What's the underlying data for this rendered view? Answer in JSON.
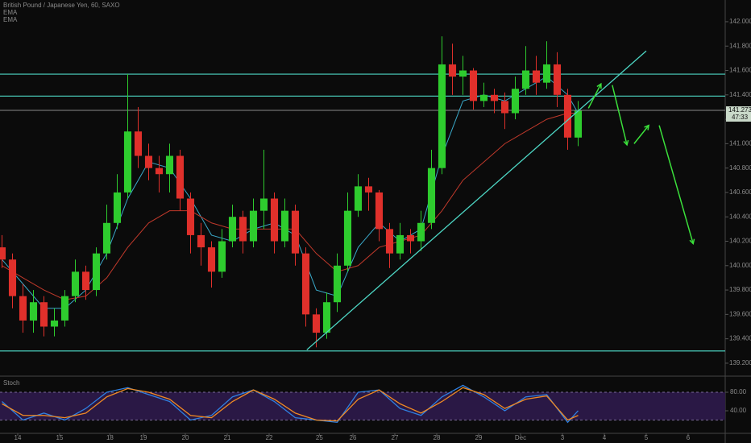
{
  "chart_data": [
    {
      "type": "candlestick",
      "title": "British Pound / Japanese Yen, 60, SAXO",
      "x": [
        -0.375,
        -0.125,
        0.125,
        0.375,
        0.625,
        0.875,
        1.125,
        1.375,
        1.625,
        1.875,
        2.125,
        2.375,
        2.625,
        2.875,
        3.125,
        3.375,
        3.625,
        3.875,
        4.125,
        4.375,
        4.625,
        4.875,
        5.125,
        5.375,
        5.625,
        5.875,
        6.125,
        6.375,
        6.625,
        6.875,
        7.125,
        7.375,
        7.625,
        7.875,
        8.125,
        8.375,
        8.625,
        8.875,
        9.125,
        9.375,
        9.625,
        9.875,
        10.125,
        10.375,
        10.625,
        10.875,
        11.125,
        11.375,
        11.625,
        11.875,
        12.125,
        12.375,
        12.625,
        12.875,
        13.125,
        13.375
      ],
      "open": [
        140.15,
        140.05,
        139.75,
        139.55,
        139.7,
        139.5,
        139.55,
        139.75,
        139.95,
        139.8,
        140.1,
        140.35,
        140.6,
        141.1,
        140.9,
        140.8,
        140.75,
        140.9,
        140.55,
        140.25,
        140.15,
        139.95,
        140.2,
        140.4,
        140.2,
        140.45,
        140.55,
        140.2,
        140.45,
        140.1,
        139.6,
        139.45,
        139.7,
        140.0,
        140.45,
        140.65,
        140.6,
        140.3,
        140.1,
        140.25,
        140.2,
        140.35,
        140.8,
        141.65,
        141.55,
        141.6,
        141.35,
        141.4,
        141.35,
        141.25,
        141.45,
        141.6,
        141.5,
        141.65,
        141.4,
        141.05
      ],
      "high": [
        140.25,
        140.1,
        139.85,
        139.8,
        139.75,
        139.65,
        139.8,
        140.05,
        140.0,
        140.15,
        140.5,
        140.75,
        141.57,
        141.3,
        141.0,
        140.9,
        141.0,
        140.95,
        140.6,
        140.35,
        140.2,
        140.3,
        140.5,
        140.45,
        140.55,
        140.95,
        140.6,
        140.55,
        140.5,
        140.15,
        139.65,
        139.78,
        140.1,
        140.6,
        140.75,
        140.72,
        140.62,
        140.35,
        140.35,
        140.3,
        140.45,
        140.95,
        141.88,
        141.82,
        141.72,
        141.62,
        141.5,
        141.45,
        141.42,
        141.55,
        141.8,
        141.72,
        141.84,
        141.75,
        141.45,
        141.35
      ],
      "low": [
        139.98,
        139.65,
        139.45,
        139.45,
        139.42,
        139.42,
        139.5,
        139.7,
        139.72,
        139.75,
        140.05,
        140.3,
        140.55,
        140.8,
        140.7,
        140.6,
        140.6,
        140.45,
        140.1,
        140.0,
        139.82,
        139.9,
        140.15,
        140.1,
        140.15,
        140.3,
        140.1,
        140.15,
        140.0,
        139.5,
        139.33,
        139.4,
        139.62,
        139.95,
        140.4,
        140.45,
        140.2,
        139.98,
        140.05,
        140.1,
        140.12,
        140.3,
        140.75,
        141.4,
        141.4,
        141.28,
        141.3,
        141.25,
        141.12,
        141.2,
        141.4,
        141.4,
        141.45,
        141.3,
        140.95,
        140.98
      ],
      "close": [
        140.05,
        139.75,
        139.55,
        139.7,
        139.5,
        139.55,
        139.75,
        139.95,
        139.8,
        140.1,
        140.35,
        140.6,
        141.1,
        140.9,
        140.8,
        140.75,
        140.9,
        140.55,
        140.25,
        140.15,
        139.95,
        140.2,
        140.4,
        140.2,
        140.45,
        140.55,
        140.2,
        140.45,
        140.1,
        139.6,
        139.45,
        139.7,
        140.0,
        140.45,
        140.65,
        140.6,
        140.3,
        140.1,
        140.25,
        140.2,
        140.35,
        140.8,
        141.65,
        141.55,
        141.6,
        141.35,
        141.4,
        141.35,
        141.25,
        141.45,
        141.6,
        141.5,
        141.65,
        141.4,
        141.05,
        141.27
      ],
      "up_color": "#2ecc2e",
      "down_color": "#e0302b",
      "overlays": [
        {
          "name": "EMA",
          "color": "#3aa8c8",
          "x": [
            -0.375,
            0.125,
            0.625,
            1.125,
            1.625,
            2.125,
            2.625,
            3.125,
            3.625,
            4.125,
            4.625,
            5.125,
            5.625,
            6.125,
            6.625,
            7.125,
            7.625,
            8.125,
            8.625,
            9.125,
            9.625,
            10.125,
            10.625,
            11.125,
            11.625,
            12.125,
            12.625,
            13.125,
            13.375
          ],
          "values": [
            140.05,
            139.85,
            139.65,
            139.65,
            139.8,
            140.1,
            140.55,
            140.85,
            140.8,
            140.55,
            140.25,
            140.2,
            140.3,
            140.35,
            140.25,
            139.8,
            139.75,
            140.15,
            140.35,
            140.2,
            140.3,
            140.9,
            141.35,
            141.4,
            141.35,
            141.45,
            141.55,
            141.4,
            141.25
          ]
        },
        {
          "name": "EMA",
          "color": "#c0392b",
          "x": [
            -0.375,
            0.125,
            0.625,
            1.125,
            1.625,
            2.125,
            2.625,
            3.125,
            3.625,
            4.125,
            4.625,
            5.125,
            5.625,
            6.125,
            6.625,
            7.125,
            7.625,
            8.125,
            8.625,
            9.125,
            9.625,
            10.125,
            10.625,
            11.125,
            11.625,
            12.125,
            12.625,
            13.125,
            13.375
          ],
          "values": [
            140.0,
            139.9,
            139.8,
            139.72,
            139.75,
            139.9,
            140.15,
            140.35,
            140.45,
            140.45,
            140.35,
            140.3,
            140.3,
            140.3,
            140.3,
            140.1,
            139.95,
            140.0,
            140.15,
            140.2,
            140.25,
            140.45,
            140.7,
            140.85,
            141.0,
            141.1,
            141.2,
            141.25,
            141.25
          ]
        }
      ],
      "levels": [
        141.57,
        141.39,
        139.3
      ],
      "level_color": "#4dd6c4",
      "last_price": 141.273,
      "countdown": "47:33",
      "last_price_color": "#8a8a8a",
      "trendline": {
        "x": [
          6.9,
          15.0
        ],
        "y": [
          139.31,
          141.76
        ],
        "color": "#4dd6c4"
      },
      "forecast": {
        "color": "#3be03b",
        "segments": [
          {
            "x": [
              13.62,
              13.92
            ],
            "y": [
              141.29,
              141.49
            ]
          },
          {
            "x": [
              14.19,
              14.54
            ],
            "y": [
              141.48,
              140.99
            ]
          },
          {
            "x": [
              14.71,
              15.06
            ],
            "y": [
              141.0,
              141.15
            ]
          },
          {
            "x": [
              15.31,
              16.12
            ],
            "y": [
              141.15,
              140.18
            ]
          }
        ]
      },
      "xlim": [
        -0.423,
        16.885
      ],
      "ylim": [
        139.107,
        142.178
      ],
      "xticks": [
        {
          "value": 0,
          "label": "14"
        },
        {
          "value": 1,
          "label": "15"
        },
        {
          "value": 2.2,
          "label": "18"
        },
        {
          "value": 3,
          "label": "19"
        },
        {
          "value": 4,
          "label": "20"
        },
        {
          "value": 5,
          "label": "21"
        },
        {
          "value": 6,
          "label": "22"
        },
        {
          "value": 7.2,
          "label": "25"
        },
        {
          "value": 8,
          "label": "26"
        },
        {
          "value": 9,
          "label": "27"
        },
        {
          "value": 10,
          "label": "28"
        },
        {
          "value": 11,
          "label": "29"
        },
        {
          "value": 12,
          "label": "Dec"
        },
        {
          "value": 13,
          "label": "3"
        },
        {
          "value": 14,
          "label": "4"
        },
        {
          "value": 15,
          "label": "5"
        },
        {
          "value": 16,
          "label": "6"
        }
      ],
      "yticks": [
        {
          "value": 139.2,
          "label": "139.200"
        },
        {
          "value": 139.4,
          "label": "139.400"
        },
        {
          "value": 139.6,
          "label": "139.600"
        },
        {
          "value": 139.8,
          "label": "139.800"
        },
        {
          "value": 140.0,
          "label": "140.000"
        },
        {
          "value": 140.2,
          "label": "140.200"
        },
        {
          "value": 140.4,
          "label": "140.400"
        },
        {
          "value": 140.6,
          "label": "140.600"
        },
        {
          "value": 140.8,
          "label": "140.800"
        },
        {
          "value": 141.0,
          "label": "141.000"
        },
        {
          "value": 141.2,
          "label": "141.200"
        },
        {
          "value": 141.4,
          "label": "141.400"
        },
        {
          "value": 141.6,
          "label": "141.600"
        },
        {
          "value": 141.8,
          "label": "141.800"
        },
        {
          "value": 142.0,
          "label": "142.000"
        }
      ]
    },
    {
      "type": "line",
      "title": "Stoch",
      "x": [
        -0.375,
        0.125,
        0.625,
        1.125,
        1.625,
        2.125,
        2.625,
        3.125,
        3.625,
        4.125,
        4.625,
        5.125,
        5.625,
        6.125,
        6.625,
        7.125,
        7.625,
        8.125,
        8.625,
        9.125,
        9.625,
        10.125,
        10.625,
        11.125,
        11.625,
        12.125,
        12.625,
        13.125,
        13.375
      ],
      "series": [
        {
          "color": "#2f7fe0",
          "values": [
            60,
            20,
            35,
            20,
            45,
            80,
            90,
            75,
            60,
            20,
            30,
            70,
            85,
            60,
            25,
            20,
            15,
            80,
            85,
            45,
            30,
            70,
            95,
            70,
            40,
            70,
            75,
            15,
            40
          ]
        },
        {
          "color": "#f08a24",
          "values": [
            55,
            30,
            30,
            25,
            35,
            70,
            88,
            80,
            65,
            30,
            25,
            60,
            85,
            65,
            35,
            20,
            18,
            65,
            85,
            55,
            35,
            60,
            90,
            75,
            45,
            65,
            72,
            20,
            30
          ]
        }
      ],
      "band": [
        20,
        80
      ],
      "band_color": "#2a1845",
      "ylim": [
        -7,
        109.6
      ],
      "yticks": [
        {
          "value": 80,
          "label": "80.00"
        },
        {
          "value": 40,
          "label": "40.00"
        }
      ]
    }
  ]
}
